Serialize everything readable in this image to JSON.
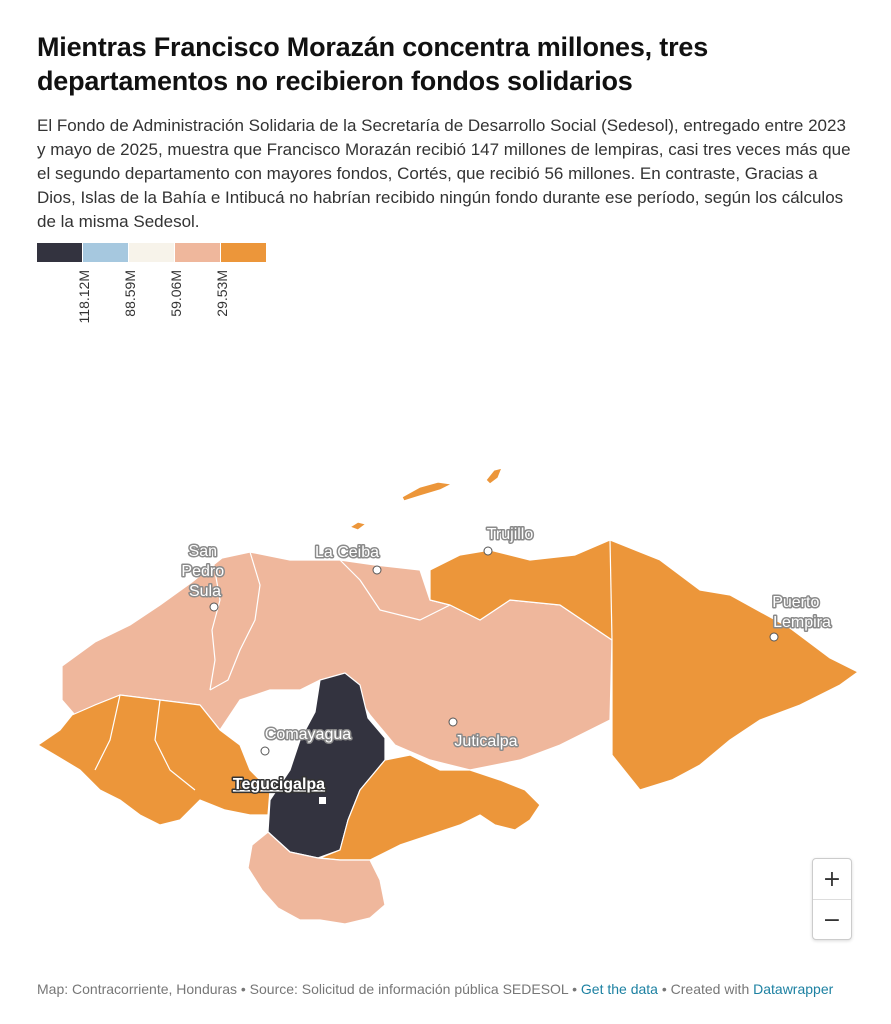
{
  "header": {
    "title": "Mientras Francisco Morazán concentra millones, tres departamentos no recibieron fondos solidarios",
    "description": "El Fondo de Administración Solidaria de la Secretaría de Desarrollo Social (Sedesol), entregado entre 2023 y mayo de 2025, muestra que Francisco Morazán recibió 147 millones de lempiras, casi tres veces más que el segundo departamento con mayores fondos, Cortés, que recibió 56 millones. En contraste, Gracias a Dios, Islas de la Bahía e Intibucá no habrían recibido ningún fondo durante ese período, según los cálculos de la misma Sedesol."
  },
  "legend": {
    "colors": [
      "#33333f",
      "#a6c8df",
      "#f7f3ea",
      "#efb79c",
      "#ec963a"
    ],
    "ticks": [
      "118.12M",
      "88.59M",
      "59.06M",
      "29.53M"
    ]
  },
  "colors": {
    "dark": "#33333f",
    "peach": "#efb79c",
    "orange": "#ec963a",
    "border": "#ffffff"
  },
  "map": {
    "cities": {
      "san_pedro_sula": [
        "San",
        "Pedro",
        "Sula"
      ],
      "la_ceiba": "La Ceiba",
      "trujillo": "Trujillo",
      "puerto_lempira": [
        "Puerto",
        "Lempira"
      ],
      "comayagua": "Comayagua",
      "juticalpa": "Juticalpa",
      "tegucigalpa": "Tegucigalpa"
    }
  },
  "zoom": {
    "in": "+",
    "out": "−"
  },
  "footer": {
    "prefix": "Map: Contracorriente, Honduras • Source: Solicitud de información pública SEDESOL • ",
    "get_data": "Get the data",
    "created": " • Created with ",
    "datawrapper": "Datawrapper"
  }
}
